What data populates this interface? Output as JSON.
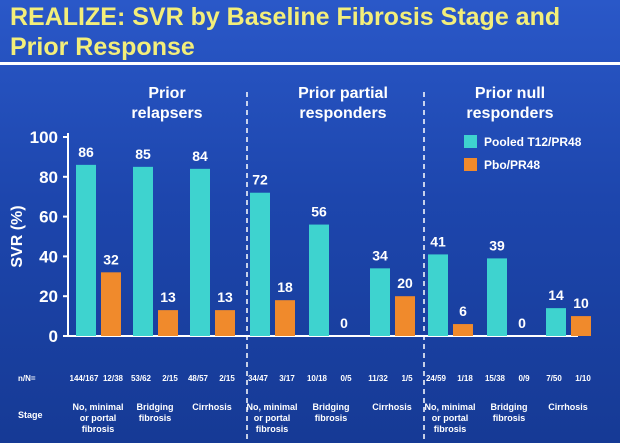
{
  "title_line1": "REALIZE: SVR by Baseline Fibrosis Stage and",
  "title_line2": "Prior Response",
  "colors": {
    "pooled": "#3ed3cf",
    "pbo": "#f08a2c",
    "background": "#1d46ad",
    "title": "#f3ee7a"
  },
  "chart_data": {
    "type": "bar",
    "ylabel": "SVR (%)",
    "ylim": [
      0,
      100
    ],
    "yticks": [
      0,
      20,
      40,
      60,
      80,
      100
    ],
    "grid": false,
    "legend_position": "right",
    "series": [
      {
        "name": "Pooled T12/PR48",
        "values": [
          86,
          85,
          84,
          72,
          56,
          34,
          41,
          39,
          14
        ]
      },
      {
        "name": "Pbo/PR48",
        "values": [
          32,
          13,
          13,
          18,
          0,
          20,
          6,
          0,
          10
        ]
      }
    ],
    "groups": [
      {
        "label": "Prior relapsers",
        "line1": "Prior",
        "line2": "relapsers"
      },
      {
        "label": "Prior partial responders",
        "line1": "Prior partial",
        "line2": "responders"
      },
      {
        "label": "Prior null responders",
        "line1": "Prior null",
        "line2": "responders"
      }
    ],
    "categories": [
      {
        "group": 0,
        "stage": [
          "No, minimal",
          "or portal",
          "fibrosis"
        ],
        "nn": [
          "144/167",
          "12/38"
        ]
      },
      {
        "group": 0,
        "stage": [
          "Bridging",
          "fibrosis"
        ],
        "nn": [
          "53/62",
          "2/15"
        ]
      },
      {
        "group": 0,
        "stage": [
          "Cirrhosis"
        ],
        "nn": [
          "48/57",
          "2/15"
        ]
      },
      {
        "group": 1,
        "stage": [
          "No, minimal",
          "or portal",
          "fibrosis"
        ],
        "nn": [
          "34/47",
          "3/17"
        ]
      },
      {
        "group": 1,
        "stage": [
          "Bridging",
          "fibrosis"
        ],
        "nn": [
          "10/18",
          "0/5"
        ]
      },
      {
        "group": 1,
        "stage": [
          "Cirrhosis"
        ],
        "nn": [
          "11/32",
          "1/5"
        ]
      },
      {
        "group": 2,
        "stage": [
          "No, minimal",
          "or portal",
          "fibrosis"
        ],
        "nn": [
          "24/59",
          "1/18"
        ]
      },
      {
        "group": 2,
        "stage": [
          "Bridging",
          "fibrosis"
        ],
        "nn": [
          "15/38",
          "0/9"
        ]
      },
      {
        "group": 2,
        "stage": [
          "Cirrhosis"
        ],
        "nn": [
          "7/50",
          "1/10"
        ]
      }
    ],
    "row_labels": {
      "nn": "n/N=",
      "stage": "Stage"
    }
  }
}
